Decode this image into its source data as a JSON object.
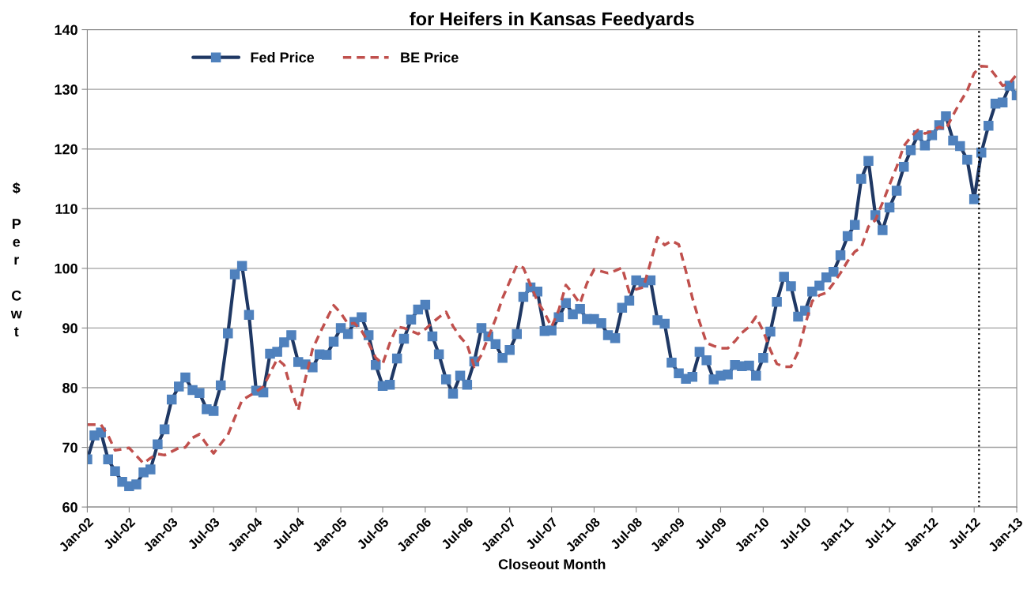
{
  "chart_data": {
    "type": "line",
    "title": "for Heifers in Kansas Feedyards",
    "xlabel": "Closeout Month",
    "ylabel": "$ Per Cwt",
    "x": [
      "2002-01",
      "2002-02",
      "2002-03",
      "2002-04",
      "2002-05",
      "2002-06",
      "2002-07",
      "2002-08",
      "2002-09",
      "2002-10",
      "2002-11",
      "2002-12",
      "2003-01",
      "2003-02",
      "2003-03",
      "2003-04",
      "2003-05",
      "2003-06",
      "2003-07",
      "2003-08",
      "2003-09",
      "2003-10",
      "2003-11",
      "2003-12",
      "2004-01",
      "2004-02",
      "2004-03",
      "2004-04",
      "2004-05",
      "2004-06",
      "2004-07",
      "2004-08",
      "2004-09",
      "2004-10",
      "2004-11",
      "2004-12",
      "2005-01",
      "2005-02",
      "2005-03",
      "2005-04",
      "2005-05",
      "2005-06",
      "2005-07",
      "2005-08",
      "2005-09",
      "2005-10",
      "2005-11",
      "2005-12",
      "2006-01",
      "2006-02",
      "2006-03",
      "2006-04",
      "2006-05",
      "2006-06",
      "2006-07",
      "2006-08",
      "2006-09",
      "2006-10",
      "2006-11",
      "2006-12",
      "2007-01",
      "2007-02",
      "2007-03",
      "2007-04",
      "2007-05",
      "2007-06",
      "2007-07",
      "2007-08",
      "2007-09",
      "2007-10",
      "2007-11",
      "2007-12",
      "2008-01",
      "2008-02",
      "2008-03",
      "2008-04",
      "2008-05",
      "2008-06",
      "2008-07",
      "2008-08",
      "2008-09",
      "2008-10",
      "2008-11",
      "2008-12",
      "2009-01",
      "2009-02",
      "2009-03",
      "2009-04",
      "2009-05",
      "2009-06",
      "2009-07",
      "2009-08",
      "2009-09",
      "2009-10",
      "2009-11",
      "2009-12",
      "2010-01",
      "2010-02",
      "2010-03",
      "2010-04",
      "2010-05",
      "2010-06",
      "2010-07",
      "2010-08",
      "2010-09",
      "2010-10",
      "2010-11",
      "2010-12",
      "2011-01",
      "2011-02",
      "2011-03",
      "2011-04",
      "2011-05",
      "2011-06",
      "2011-07",
      "2011-08",
      "2011-09",
      "2011-10",
      "2011-11",
      "2011-12",
      "2012-01",
      "2012-02",
      "2012-03",
      "2012-04",
      "2012-05",
      "2012-06",
      "2012-07",
      "2012-08",
      "2012-09",
      "2012-10",
      "2012-11",
      "2012-12",
      "2013-01"
    ],
    "series": [
      {
        "name": "Fed Price",
        "color": "#1f3864",
        "marker": "square",
        "line_style": "solid",
        "values": [
          68,
          72,
          72.5,
          68,
          66,
          64.2,
          63.5,
          63.8,
          65.8,
          66.3,
          70.5,
          73,
          78,
          80.2,
          81.7,
          79.6,
          79.1,
          76.4,
          76.1,
          80.4,
          89.1,
          99,
          100.4,
          92.2,
          79.5,
          79.2,
          85.7,
          86,
          87.6,
          88.8,
          84.3,
          83.9,
          83.4,
          85.6,
          85.5,
          87.7,
          90,
          89,
          91,
          91.8,
          88.8,
          83.8,
          80.3,
          80.5,
          84.9,
          88.2,
          91.4,
          93.1,
          93.9,
          88.6,
          85.6,
          81.4,
          79,
          82,
          80.5,
          84.4,
          90,
          88.6,
          87.3,
          85,
          86.3,
          89,
          95.2,
          96.8,
          96.1,
          89.5,
          89.6,
          91.8,
          94.2,
          92.3,
          93.2,
          91.5,
          91.5,
          90.8,
          88.8,
          88.3,
          93.4,
          94.6,
          98,
          97.6,
          98,
          91.3,
          90.7,
          84.2,
          82.4,
          81.5,
          81.8,
          86,
          84.6,
          81.4,
          82,
          82.2,
          83.8,
          83.6,
          83.7,
          82,
          85,
          89.4,
          94.4,
          98.6,
          97,
          91.9,
          92.9,
          96.1,
          97.1,
          98.5,
          99.4,
          102.2,
          105.4,
          107.3,
          115,
          118,
          108.9,
          106.4,
          110.2,
          113,
          117,
          119.8,
          122.3,
          120.6,
          122.3,
          124,
          125.5,
          121.4,
          120.5,
          118.2,
          111.6,
          119.4,
          123.9,
          127.6,
          127.8,
          130.6,
          129
        ]
      },
      {
        "name": "BE Price",
        "color": "#c0504d",
        "marker": "none",
        "line_style": "dashed",
        "values": [
          73.8,
          73.8,
          73.8,
          72,
          69.5,
          69.7,
          69.9,
          68.6,
          67.3,
          68.2,
          68.9,
          68.7,
          69.3,
          69.9,
          70,
          71.6,
          72.2,
          70.5,
          69,
          70.6,
          72.1,
          75,
          77.9,
          78.6,
          79.3,
          80.2,
          82.4,
          84.8,
          83.8,
          79.6,
          76.2,
          81.5,
          86.5,
          89,
          91.5,
          93.8,
          92.5,
          90.7,
          90.8,
          89.5,
          87.5,
          85,
          84,
          87.5,
          90.2,
          90,
          89.5,
          89,
          89.8,
          90.9,
          91.8,
          92.7,
          90.3,
          88.5,
          87.2,
          83.5,
          85.5,
          88.5,
          91.5,
          95,
          97.8,
          100.5,
          100.1,
          97.2,
          94.5,
          92.5,
          90.2,
          93,
          97.2,
          95.8,
          94.1,
          97.5,
          99.8,
          99.5,
          99.2,
          99.6,
          100.1,
          96,
          96.5,
          96.8,
          101,
          105.2,
          103.9,
          104.6,
          104,
          99.5,
          95,
          91,
          87.5,
          87,
          86.6,
          86.6,
          87.8,
          89.2,
          90.2,
          91.9,
          89.5,
          86.3,
          84,
          83.5,
          83.5,
          86,
          90.5,
          94.5,
          95.5,
          95.9,
          97.5,
          99.2,
          101.2,
          102.8,
          103.5,
          107,
          108.1,
          111,
          114,
          117,
          120.5,
          122,
          123.2,
          122.6,
          123,
          123.7,
          123.3,
          125.7,
          127.8,
          129.8,
          132.7,
          133.9,
          133.8,
          132.3,
          130.6,
          131,
          132.5
        ]
      }
    ],
    "xlim": [
      "2002-01",
      "2013-01"
    ],
    "xticks": [
      {
        "value": "2002-01",
        "label": "Jan-02"
      },
      {
        "value": "2002-07",
        "label": "Jul-02"
      },
      {
        "value": "2003-01",
        "label": "Jan-03"
      },
      {
        "value": "2003-07",
        "label": "Jul-03"
      },
      {
        "value": "2004-01",
        "label": "Jan-04"
      },
      {
        "value": "2004-07",
        "label": "Jul-04"
      },
      {
        "value": "2005-01",
        "label": "Jan-05"
      },
      {
        "value": "2005-07",
        "label": "Jul-05"
      },
      {
        "value": "2006-01",
        "label": "Jan-06"
      },
      {
        "value": "2006-07",
        "label": "Jul-06"
      },
      {
        "value": "2007-01",
        "label": "Jan-07"
      },
      {
        "value": "2007-07",
        "label": "Jul-07"
      },
      {
        "value": "2008-01",
        "label": "Jan-08"
      },
      {
        "value": "2008-07",
        "label": "Jul-08"
      },
      {
        "value": "2009-01",
        "label": "Jan-09"
      },
      {
        "value": "2009-07",
        "label": "Jul-09"
      },
      {
        "value": "2010-01",
        "label": "Jan-10"
      },
      {
        "value": "2010-07",
        "label": "Jul-10"
      },
      {
        "value": "2011-01",
        "label": "Jan-11"
      },
      {
        "value": "2011-07",
        "label": "Jul-11"
      },
      {
        "value": "2012-01",
        "label": "Jan-12"
      },
      {
        "value": "2012-07",
        "label": "Jul-12"
      },
      {
        "value": "2013-01",
        "label": "Jan-13"
      }
    ],
    "ylim": [
      60,
      140
    ],
    "yticks": [
      60,
      70,
      80,
      90,
      100,
      110,
      120,
      130,
      140
    ],
    "ref_lines": [
      {
        "axis": "x",
        "value": "2012-07-22",
        "color": "#000000",
        "line_style": "dotted"
      }
    ],
    "grid": "y",
    "legend": "top left"
  }
}
